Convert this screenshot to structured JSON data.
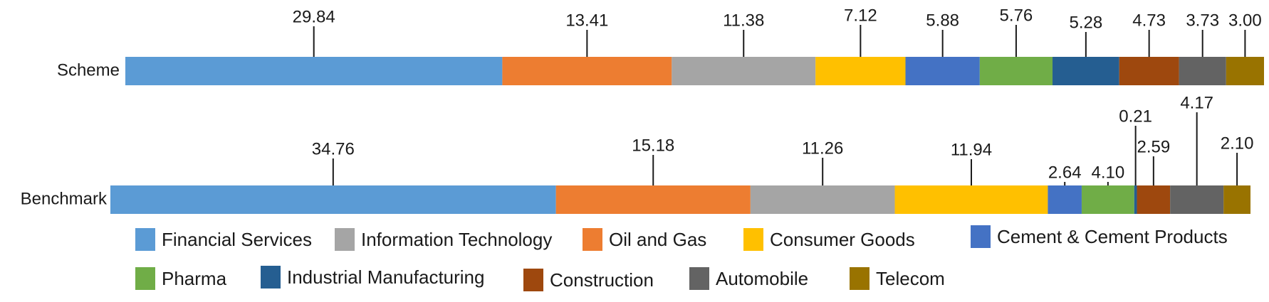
{
  "chart_data": {
    "type": "bar",
    "orientation": "horizontal",
    "stacked": true,
    "categories": [
      "Scheme",
      "Benchmark"
    ],
    "series": [
      {
        "name": "Financial Services",
        "color": "#5B9BD5",
        "values": [
          29.84,
          34.76
        ],
        "labels": [
          "29.84",
          "34.76"
        ]
      },
      {
        "name": "Oil and Gas",
        "color": "#ED7D31",
        "values": [
          13.41,
          15.18
        ],
        "labels": [
          "13.41",
          "15.18"
        ]
      },
      {
        "name": "Information Technology",
        "color": "#A5A5A5",
        "values": [
          11.38,
          11.26
        ],
        "labels": [
          "11.38",
          "11.26"
        ]
      },
      {
        "name": "Consumer Goods",
        "color": "#FFC000",
        "values": [
          7.12,
          11.94
        ],
        "labels": [
          "7.12",
          "11.94"
        ]
      },
      {
        "name": "Cement & Cement Products",
        "color": "#4472C4",
        "values": [
          5.88,
          2.64
        ],
        "labels": [
          "5.88",
          "2.64"
        ]
      },
      {
        "name": "Pharma",
        "color": "#70AD47",
        "values": [
          5.76,
          4.1
        ],
        "labels": [
          "5.76",
          "4.10"
        ]
      },
      {
        "name": "Industrial Manufacturing",
        "color": "#255E91",
        "values": [
          5.28,
          0.21
        ],
        "labels": [
          "5.28",
          "0.21"
        ]
      },
      {
        "name": "Construction",
        "color": "#9E480E",
        "values": [
          4.73,
          2.59
        ],
        "labels": [
          "4.73",
          "2.59"
        ]
      },
      {
        "name": "Automobile",
        "color": "#636363",
        "values": [
          3.73,
          4.17
        ],
        "labels": [
          "3.73",
          "4.17"
        ]
      },
      {
        "name": "Telecom",
        "color": "#997300",
        "values": [
          3.0,
          2.1
        ],
        "labels": [
          "3.00",
          "2.10"
        ]
      }
    ],
    "legend_order": [
      "Financial Services",
      "Information Technology",
      "Oil and Gas",
      "Consumer Goods",
      "Cement & Cement Products",
      "Pharma",
      "Industrial Manufacturing",
      "Construction",
      "Automobile",
      "Telecom"
    ],
    "legend_position": "bottom",
    "grid": false
  }
}
